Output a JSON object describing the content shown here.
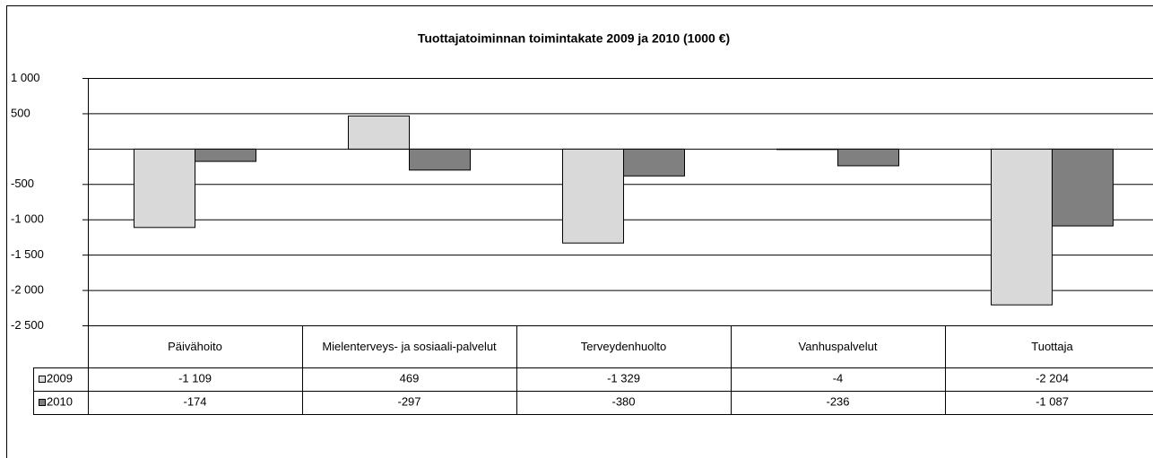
{
  "chart_data": {
    "type": "bar",
    "title": "Tuottajatoiminnan toimintakate 2009 ja 2010  (1000 €)",
    "categories": [
      "Päivähoito",
      "Mielenterveys- ja sosiaali-palvelut",
      "Terveydenhuolto",
      "Vanhuspalvelut",
      "Tuottaja"
    ],
    "series": [
      {
        "name": "2009",
        "color": "#d9d9d9",
        "values": [
          -1109,
          469,
          -1329,
          -4,
          -2204
        ],
        "value_labels": [
          "-1 109",
          "469",
          "-1 329",
          "-4",
          "-2 204"
        ]
      },
      {
        "name": "2010",
        "color": "#808080",
        "values": [
          -174,
          -297,
          -380,
          -236,
          -1087
        ],
        "value_labels": [
          "-174",
          "-297",
          "-380",
          "-236",
          "-1 087"
        ]
      }
    ],
    "ylim": [
      -2500,
      1000
    ],
    "yticks": [
      {
        "value": 1000,
        "label": "1 000"
      },
      500,
      {
        "value": -500,
        "label": "-500"
      },
      {
        "value": -1000,
        "label": "-1 000"
      },
      {
        "value": -1500,
        "label": "-1 500"
      },
      {
        "value": -2000,
        "label": "-2 000"
      },
      {
        "value": -2500,
        "label": "-2 500"
      }
    ],
    "grid": true
  }
}
